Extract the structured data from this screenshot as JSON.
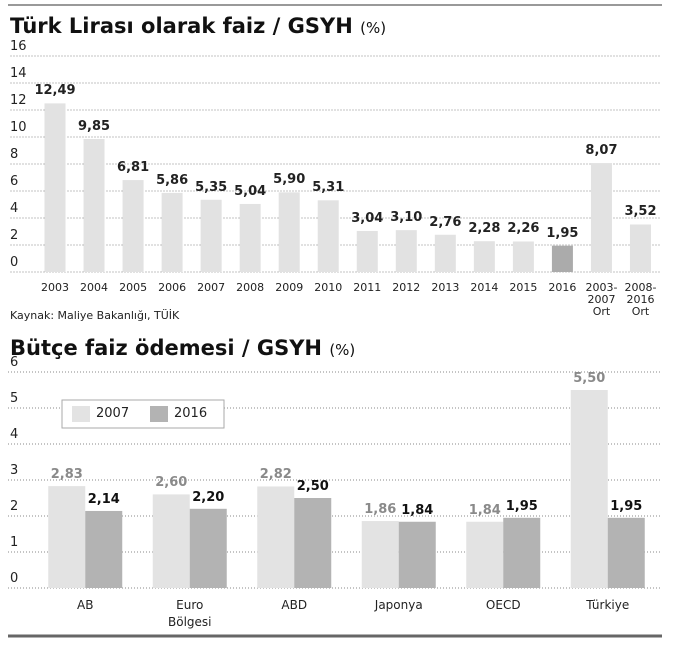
{
  "chart_data": [
    {
      "type": "bar",
      "title": "Türk Lirası olarak faiz / GSYH",
      "subtitle": "(%)",
      "categories": [
        "2003",
        "2004",
        "2005",
        "2006",
        "2007",
        "2008",
        "2009",
        "2010",
        "2011",
        "2012",
        "2013",
        "2014",
        "2015",
        "2016",
        "2003-\n2007\nOrt",
        "2008-\n2016\nOrt"
      ],
      "values": [
        12.49,
        9.85,
        6.81,
        5.86,
        5.35,
        5.04,
        5.9,
        5.31,
        3.04,
        3.1,
        2.76,
        2.28,
        2.26,
        1.95,
        8.07,
        3.52
      ],
      "value_labels": [
        "12,49",
        "9,85",
        "6,81",
        "5,86",
        "5,35",
        "5,04",
        "5,90",
        "5,31",
        "3,04",
        "3,10",
        "2,76",
        "2,28",
        "2,26",
        "1,95",
        "8,07",
        "3,52"
      ],
      "colors": [
        "#e2e2e2",
        "#e2e2e2",
        "#e2e2e2",
        "#e2e2e2",
        "#e2e2e2",
        "#e2e2e2",
        "#e2e2e2",
        "#e2e2e2",
        "#e2e2e2",
        "#e2e2e2",
        "#e2e2e2",
        "#e2e2e2",
        "#e2e2e2",
        "#ababab",
        "#e2e2e2",
        "#e2e2e2"
      ],
      "ylim": [
        0,
        16
      ],
      "yticks": [
        0,
        2,
        4,
        6,
        8,
        10,
        12,
        14,
        16
      ],
      "grid": true,
      "source": "Kaynak: Maliye Bakanlığı, TÜİK"
    },
    {
      "type": "grouped-bar",
      "title": "Bütçe faiz ödemesi / GSYH",
      "subtitle": "(%)",
      "categories": [
        "AB",
        "Euro\nBölgesi",
        "ABD",
        "Japonya",
        "OECD",
        "Türkiye"
      ],
      "series": [
        {
          "name": "2007",
          "color": "#e3e3e3",
          "label_color": "#8a8a8a",
          "values": [
            2.83,
            2.6,
            2.82,
            1.86,
            1.84,
            5.5
          ],
          "value_labels": [
            "2,83",
            "2,60",
            "2,82",
            "1,86",
            "1,84",
            "5,50"
          ]
        },
        {
          "name": "2016",
          "color": "#b3b3b3",
          "label_color": "#111111",
          "values": [
            2.14,
            2.2,
            2.5,
            1.84,
            1.95,
            1.95
          ],
          "value_labels": [
            "2,14",
            "2,20",
            "2,50",
            "1,84",
            "1,95",
            "1,95"
          ]
        }
      ],
      "ylim": [
        0,
        6
      ],
      "yticks": [
        0,
        1,
        2,
        3,
        4,
        5,
        6
      ],
      "grid": true,
      "legend": "top-left"
    }
  ]
}
